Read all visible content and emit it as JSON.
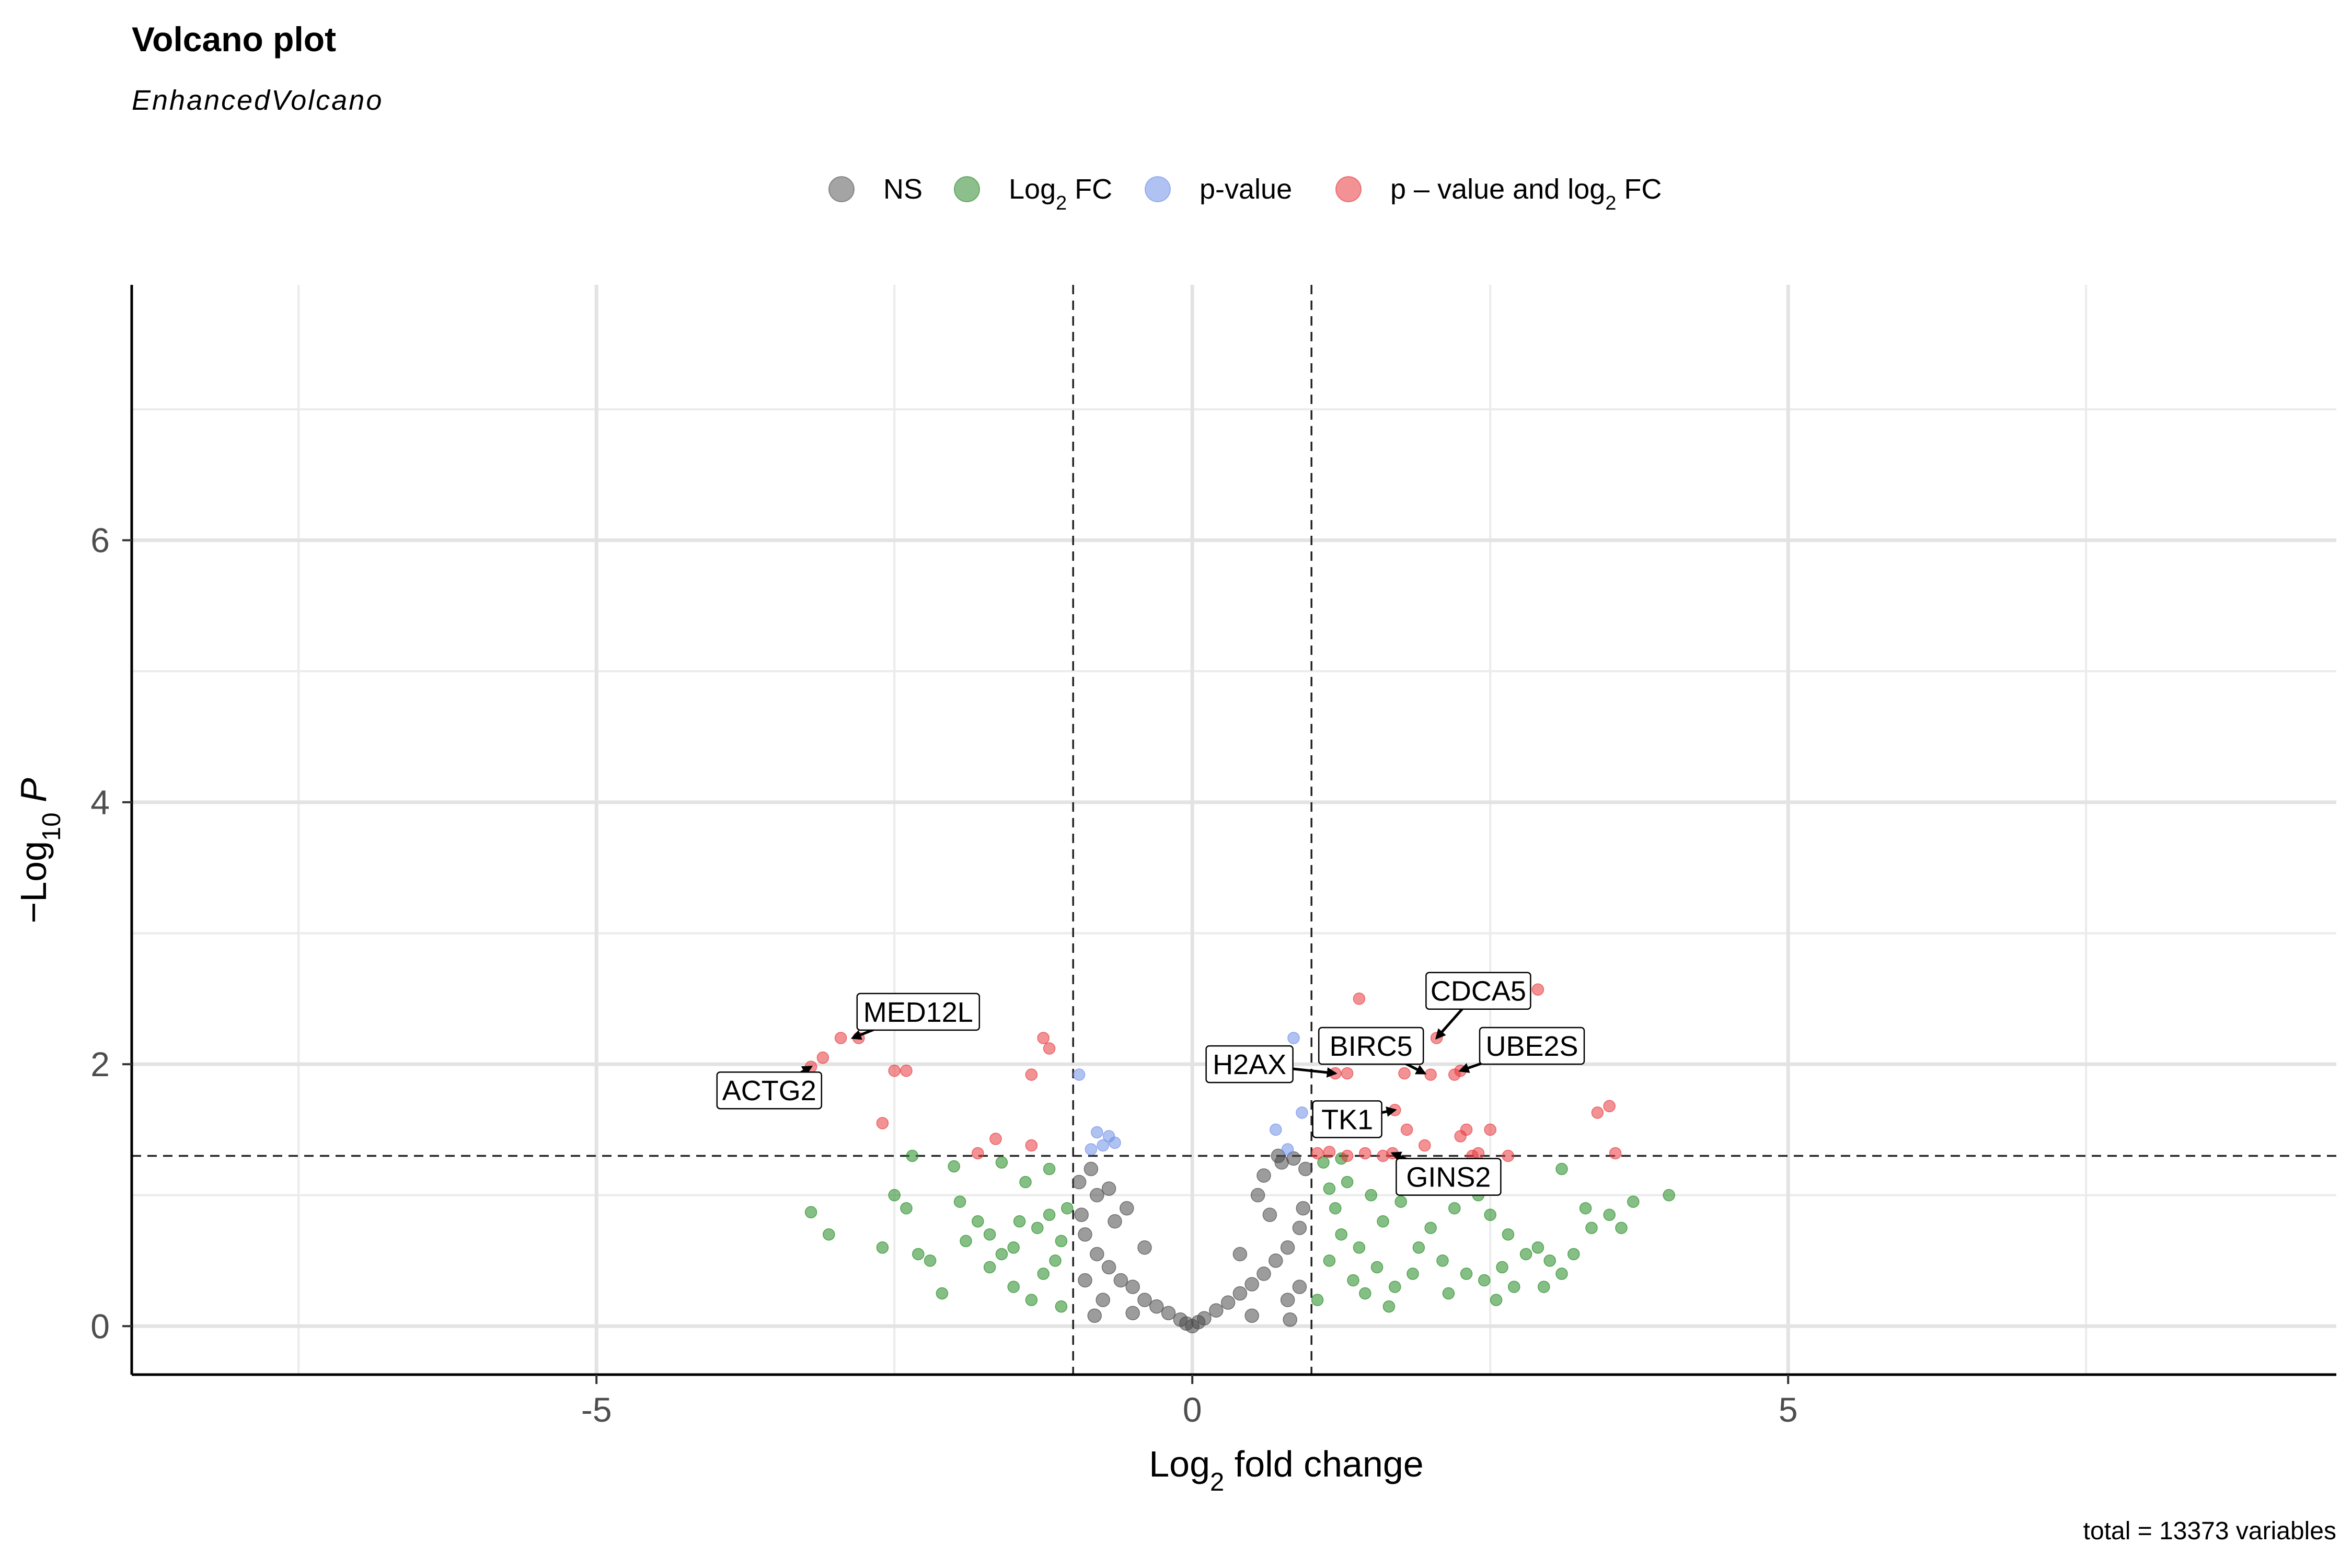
{
  "chart_data": {
    "type": "scatter",
    "title": "Volcano plot",
    "subtitle": "EnhancedVolcano",
    "caption": "total = 13373 variables",
    "xlabel": {
      "base": "Log",
      "sub": "2",
      "rest": " fold change"
    },
    "ylabel": {
      "minus": "−",
      "base": "Log",
      "sub": "10",
      "rest": " P"
    },
    "xlim": [
      -8.9,
      9.6
    ],
    "ylim": [
      -0.37,
      7.95
    ],
    "x_ticks": [
      -5,
      0,
      5
    ],
    "x_tick_labels": [
      "-5",
      "0",
      "5"
    ],
    "y_ticks": [
      0,
      2,
      4,
      6
    ],
    "y_tick_labels": [
      "0",
      "2",
      "4",
      "6"
    ],
    "x_minor_grid": [
      -7.5,
      -2.5,
      2.5,
      7.5
    ],
    "y_minor_grid": [
      1,
      3,
      5,
      7
    ],
    "grid": true,
    "fc_cutoff": 1,
    "p_cutoff_neglog10": 1.3,
    "legend_position": "top",
    "legend": [
      {
        "key": "NS",
        "parts": [
          {
            "t": "NS"
          }
        ],
        "color": "#5a5a5a"
      },
      {
        "key": "log2fc",
        "parts": [
          {
            "t": "Log"
          },
          {
            "t": "2",
            "sub": true
          },
          {
            "t": " FC"
          }
        ],
        "color": "#2e8b2e"
      },
      {
        "key": "pvalue",
        "parts": [
          {
            "t": "p-value"
          }
        ],
        "color": "#6f8fe8"
      },
      {
        "key": "both",
        "parts": [
          {
            "t": "p – value and log"
          },
          {
            "t": "2",
            "sub": true
          },
          {
            "t": " FC"
          }
        ],
        "color": "#e8383d"
      }
    ],
    "colors": {
      "NS": "#4a4a4a",
      "log2fc": "#228b22",
      "pvalue": "#6f8fe8",
      "both": "#e8383d"
    },
    "series": [
      {
        "key": "NS",
        "note": "dense V-shaped cloud of non-significant genes, |log2FC| < 1 and -log10 P < 1.3",
        "points": [
          [
            0,
            0
          ],
          [
            -0.05,
            0.02
          ],
          [
            0.05,
            0.03
          ],
          [
            -0.1,
            0.05
          ],
          [
            0.1,
            0.06
          ],
          [
            -0.2,
            0.1
          ],
          [
            0.2,
            0.12
          ],
          [
            -0.3,
            0.15
          ],
          [
            0.3,
            0.18
          ],
          [
            -0.4,
            0.2
          ],
          [
            0.4,
            0.25
          ],
          [
            -0.5,
            0.3
          ],
          [
            0.5,
            0.32
          ],
          [
            -0.6,
            0.35
          ],
          [
            0.6,
            0.4
          ],
          [
            -0.7,
            0.45
          ],
          [
            0.7,
            0.5
          ],
          [
            -0.8,
            0.55
          ],
          [
            0.8,
            0.6
          ],
          [
            -0.9,
            0.7
          ],
          [
            0.9,
            0.75
          ],
          [
            -0.95,
            1.1
          ],
          [
            0.95,
            1.2
          ],
          [
            -0.8,
            1.0
          ],
          [
            0.75,
            1.25
          ],
          [
            -0.7,
            1.05
          ],
          [
            0.6,
            1.15
          ],
          [
            0.55,
            1.0
          ],
          [
            -0.55,
            0.9
          ],
          [
            0.85,
            1.28
          ],
          [
            -0.85,
            1.2
          ],
          [
            -0.9,
            0.35
          ],
          [
            0.9,
            0.3
          ],
          [
            -0.75,
            0.2
          ],
          [
            0.8,
            0.2
          ],
          [
            -0.5,
            0.1
          ],
          [
            0.5,
            0.08
          ],
          [
            -0.4,
            0.6
          ],
          [
            0.4,
            0.55
          ],
          [
            -0.65,
            0.8
          ],
          [
            0.65,
            0.85
          ],
          [
            0.72,
            1.3
          ],
          [
            -0.93,
            0.85
          ],
          [
            0.93,
            0.9
          ],
          [
            0.82,
            0.05
          ],
          [
            -0.82,
            0.08
          ]
        ]
      },
      {
        "key": "log2fc",
        "note": "fold change beyond ±1 but not significant",
        "points": [
          [
            -3.2,
            0.87
          ],
          [
            -3.05,
            0.7
          ],
          [
            -2.6,
            0.6
          ],
          [
            -2.5,
            1.0
          ],
          [
            -2.4,
            0.9
          ],
          [
            -2.35,
            1.3
          ],
          [
            -2.3,
            0.55
          ],
          [
            -2.2,
            0.5
          ],
          [
            -2.1,
            0.25
          ],
          [
            -2.0,
            1.22
          ],
          [
            -1.95,
            0.95
          ],
          [
            -1.8,
            0.8
          ],
          [
            -1.7,
            0.7
          ],
          [
            -1.6,
            1.25
          ],
          [
            -1.5,
            0.6
          ],
          [
            -1.4,
            1.1
          ],
          [
            -1.3,
            0.75
          ],
          [
            -1.25,
            0.4
          ],
          [
            -1.2,
            1.2
          ],
          [
            -1.15,
            0.5
          ],
          [
            -1.1,
            0.15
          ],
          [
            -1.05,
            0.9
          ],
          [
            -1.5,
            0.3
          ],
          [
            -1.7,
            0.45
          ],
          [
            -1.9,
            0.65
          ],
          [
            -1.35,
            0.2
          ],
          [
            -1.1,
            0.65
          ],
          [
            -1.2,
            0.85
          ],
          [
            -1.45,
            0.8
          ],
          [
            -1.6,
            0.55
          ],
          [
            1.05,
            0.2
          ],
          [
            1.1,
            1.25
          ],
          [
            1.15,
            0.5
          ],
          [
            1.2,
            0.9
          ],
          [
            1.25,
            0.7
          ],
          [
            1.3,
            1.1
          ],
          [
            1.35,
            0.35
          ],
          [
            1.4,
            0.6
          ],
          [
            1.5,
            1.0
          ],
          [
            1.55,
            0.45
          ],
          [
            1.6,
            0.8
          ],
          [
            1.7,
            0.3
          ],
          [
            1.8,
            1.2
          ],
          [
            1.9,
            0.6
          ],
          [
            2.0,
            0.75
          ],
          [
            2.1,
            0.5
          ],
          [
            2.2,
            0.9
          ],
          [
            2.3,
            0.4
          ],
          [
            2.4,
            1.0
          ],
          [
            2.5,
            0.85
          ],
          [
            2.6,
            0.45
          ],
          [
            2.7,
            0.3
          ],
          [
            2.8,
            0.55
          ],
          [
            2.9,
            0.6
          ],
          [
            3.0,
            0.5
          ],
          [
            3.1,
            0.4
          ],
          [
            3.2,
            0.55
          ],
          [
            3.1,
            1.2
          ],
          [
            3.3,
            0.9
          ],
          [
            3.35,
            0.75
          ],
          [
            3.5,
            0.85
          ],
          [
            3.6,
            0.75
          ],
          [
            3.7,
            0.95
          ],
          [
            4.0,
            1.0
          ],
          [
            2.45,
            0.35
          ],
          [
            2.55,
            0.2
          ],
          [
            2.95,
            0.3
          ],
          [
            1.65,
            0.15
          ],
          [
            1.45,
            0.25
          ],
          [
            1.75,
            0.95
          ],
          [
            2.15,
            0.25
          ],
          [
            1.25,
            1.28
          ],
          [
            1.85,
            0.4
          ],
          [
            2.65,
            0.7
          ],
          [
            1.15,
            1.05
          ]
        ]
      },
      {
        "key": "pvalue",
        "note": "significant p but |log2FC| < 1",
        "points": [
          [
            -0.95,
            1.92
          ],
          [
            -0.85,
            1.35
          ],
          [
            -0.8,
            1.48
          ],
          [
            -0.75,
            1.38
          ],
          [
            -0.7,
            1.45
          ],
          [
            -0.65,
            1.4
          ],
          [
            0.7,
            1.5
          ],
          [
            0.85,
            2.2
          ],
          [
            0.92,
            1.63
          ],
          [
            0.8,
            1.35
          ]
        ]
      },
      {
        "key": "both",
        "note": "significant p and |log2FC| > 1",
        "points": [
          [
            -3.2,
            1.98
          ],
          [
            -3.1,
            2.05
          ],
          [
            -2.95,
            2.2
          ],
          [
            -2.8,
            2.2
          ],
          [
            -2.5,
            1.95
          ],
          [
            -2.4,
            1.95
          ],
          [
            -2.6,
            1.55
          ],
          [
            -1.8,
            1.32
          ],
          [
            -1.65,
            1.43
          ],
          [
            -1.35,
            1.38
          ],
          [
            -1.25,
            2.2
          ],
          [
            -1.2,
            2.12
          ],
          [
            -1.35,
            1.92
          ],
          [
            1.4,
            2.5
          ],
          [
            1.2,
            1.93
          ],
          [
            1.3,
            1.93
          ],
          [
            1.15,
            1.33
          ],
          [
            1.05,
            1.32
          ],
          [
            1.3,
            1.3
          ],
          [
            1.45,
            1.32
          ],
          [
            1.6,
            1.3
          ],
          [
            1.8,
            1.5
          ],
          [
            1.95,
            1.38
          ],
          [
            2.0,
            1.92
          ],
          [
            2.05,
            2.2
          ],
          [
            2.25,
            1.45
          ],
          [
            2.3,
            1.5
          ],
          [
            2.35,
            1.3
          ],
          [
            2.4,
            1.32
          ],
          [
            2.5,
            1.5
          ],
          [
            2.65,
            1.3
          ],
          [
            2.9,
            2.57
          ],
          [
            3.4,
            1.63
          ],
          [
            3.5,
            1.68
          ],
          [
            3.55,
            1.32
          ],
          [
            1.7,
            1.65
          ],
          [
            2.2,
            1.92
          ],
          [
            2.25,
            1.95
          ],
          [
            1.68,
            1.32
          ],
          [
            1.12,
            2.05
          ],
          [
            1.78,
            1.93
          ]
        ]
      }
    ],
    "gene_labels": [
      {
        "name": "MED12L",
        "x": -2.85,
        "y": 2.2,
        "lx": -2.3,
        "ly": 2.4
      },
      {
        "name": "ACTG2",
        "x": -3.2,
        "y": 1.98,
        "lx": -3.55,
        "ly": 1.8
      },
      {
        "name": "CDCA5",
        "x": 2.05,
        "y": 2.2,
        "lx": 2.4,
        "ly": 2.56
      },
      {
        "name": "BIRC5",
        "x": 1.95,
        "y": 1.93,
        "lx": 1.5,
        "ly": 2.14
      },
      {
        "name": "UBE2S",
        "x": 2.25,
        "y": 1.95,
        "lx": 2.85,
        "ly": 2.14
      },
      {
        "name": "H2AX",
        "x": 1.2,
        "y": 1.93,
        "lx": 0.48,
        "ly": 2.0
      },
      {
        "name": "TK1",
        "x": 1.7,
        "y": 1.65,
        "lx": 1.3,
        "ly": 1.58
      },
      {
        "name": "GINS2",
        "x": 1.68,
        "y": 1.32,
        "lx": 2.15,
        "ly": 1.14
      }
    ]
  }
}
